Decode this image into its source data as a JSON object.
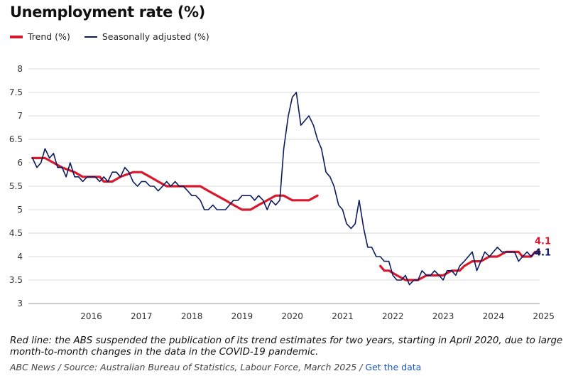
{
  "title": "Unemployment rate (%)",
  "legend": {
    "trend": "Trend (%)",
    "sa": "Seasonally adjusted (%)"
  },
  "colors": {
    "trend": "#d7192d",
    "sa": "#0c1a5e",
    "grid": "#d9d9d9"
  },
  "note": "Red line: the ABS suspended the publication of its trend estimates for two years, starting in April 2020, due to large month-to-month changes in the data in the COVID-19 pandemic.",
  "source": {
    "text": "ABC News / Source: Australian Bureau of Statistics, Labour Force, March 2025 /",
    "link": "Get the data"
  },
  "chart_data": {
    "type": "line",
    "xlim": [
      2015.25,
      2025.42
    ],
    "ylim": [
      3,
      8
    ],
    "yticks": [
      "3",
      "3.5",
      "4",
      "4.5",
      "5",
      "5.5",
      "6",
      "6.5",
      "7",
      "7.5",
      "8"
    ],
    "xticks": [
      "2016",
      "2017",
      "2018",
      "2019",
      "2020",
      "2021",
      "2022",
      "2023",
      "2024",
      "2025"
    ],
    "grid": "horizontal",
    "legend_position": "top-left",
    "end_labels": {
      "trend": "4.1",
      "sa": "4.1"
    },
    "series": [
      {
        "name": "Trend (%)",
        "key": "trend",
        "segments": [
          [
            [
              2015.33,
              6.1
            ],
            [
              2015.58,
              6.1
            ],
            [
              2015.75,
              6.0
            ],
            [
              2015.92,
              5.9
            ],
            [
              2016.17,
              5.8
            ],
            [
              2016.33,
              5.7
            ],
            [
              2016.67,
              5.7
            ],
            [
              2016.75,
              5.6
            ],
            [
              2016.92,
              5.6
            ],
            [
              2017.08,
              5.7
            ],
            [
              2017.33,
              5.8
            ],
            [
              2017.5,
              5.8
            ],
            [
              2017.67,
              5.7
            ],
            [
              2017.83,
              5.6
            ],
            [
              2018.0,
              5.5
            ],
            [
              2018.25,
              5.5
            ],
            [
              2018.5,
              5.5
            ],
            [
              2018.67,
              5.5
            ],
            [
              2018.83,
              5.4
            ],
            [
              2019.0,
              5.3
            ],
            [
              2019.17,
              5.2
            ],
            [
              2019.33,
              5.1
            ],
            [
              2019.5,
              5.0
            ],
            [
              2019.67,
              5.0
            ],
            [
              2019.83,
              5.1
            ],
            [
              2020.0,
              5.2
            ],
            [
              2020.17,
              5.3
            ],
            [
              2020.33,
              5.3
            ],
            [
              2020.5,
              5.2
            ],
            [
              2020.67,
              5.2
            ],
            [
              2020.83,
              5.2
            ],
            [
              2021.0,
              5.3
            ]
          ],
          [
            [
              2022.25,
              3.8
            ],
            [
              2022.33,
              3.7
            ],
            [
              2022.42,
              3.7
            ],
            [
              2022.58,
              3.6
            ],
            [
              2022.75,
              3.5
            ],
            [
              2023.0,
              3.5
            ],
            [
              2023.17,
              3.6
            ],
            [
              2023.5,
              3.6
            ],
            [
              2023.67,
              3.7
            ],
            [
              2023.83,
              3.7
            ],
            [
              2023.92,
              3.8
            ],
            [
              2024.08,
              3.9
            ],
            [
              2024.25,
              3.9
            ],
            [
              2024.42,
              4.0
            ],
            [
              2024.58,
              4.0
            ],
            [
              2024.75,
              4.1
            ],
            [
              2025.0,
              4.1
            ],
            [
              2025.08,
              4.0
            ],
            [
              2025.25,
              4.0
            ],
            [
              2025.33,
              4.1
            ],
            [
              2025.42,
              4.1
            ]
          ]
        ]
      },
      {
        "name": "Seasonally adjusted (%)",
        "key": "sa",
        "segments": [
          [
            [
              2015.33,
              6.1
            ],
            [
              2015.42,
              5.9
            ],
            [
              2015.5,
              6.0
            ],
            [
              2015.58,
              6.3
            ],
            [
              2015.67,
              6.1
            ],
            [
              2015.75,
              6.2
            ],
            [
              2015.83,
              5.9
            ],
            [
              2015.92,
              5.9
            ],
            [
              2016.0,
              5.7
            ],
            [
              2016.08,
              6.0
            ],
            [
              2016.17,
              5.7
            ],
            [
              2016.25,
              5.7
            ],
            [
              2016.33,
              5.6
            ],
            [
              2016.42,
              5.7
            ],
            [
              2016.5,
              5.7
            ],
            [
              2016.58,
              5.7
            ],
            [
              2016.67,
              5.6
            ],
            [
              2016.75,
              5.7
            ],
            [
              2016.83,
              5.6
            ],
            [
              2016.92,
              5.8
            ],
            [
              2017.0,
              5.8
            ],
            [
              2017.08,
              5.7
            ],
            [
              2017.17,
              5.9
            ],
            [
              2017.25,
              5.8
            ],
            [
              2017.33,
              5.6
            ],
            [
              2017.42,
              5.5
            ],
            [
              2017.5,
              5.6
            ],
            [
              2017.58,
              5.6
            ],
            [
              2017.67,
              5.5
            ],
            [
              2017.75,
              5.5
            ],
            [
              2017.83,
              5.4
            ],
            [
              2017.92,
              5.5
            ],
            [
              2018.0,
              5.6
            ],
            [
              2018.08,
              5.5
            ],
            [
              2018.17,
              5.6
            ],
            [
              2018.25,
              5.5
            ],
            [
              2018.33,
              5.5
            ],
            [
              2018.42,
              5.4
            ],
            [
              2018.5,
              5.3
            ],
            [
              2018.58,
              5.3
            ],
            [
              2018.67,
              5.2
            ],
            [
              2018.75,
              5.0
            ],
            [
              2018.83,
              5.0
            ],
            [
              2018.92,
              5.1
            ],
            [
              2019.0,
              5.0
            ],
            [
              2019.08,
              5.0
            ],
            [
              2019.17,
              5.0
            ],
            [
              2019.25,
              5.1
            ],
            [
              2019.33,
              5.2
            ],
            [
              2019.42,
              5.2
            ],
            [
              2019.5,
              5.3
            ],
            [
              2019.58,
              5.3
            ],
            [
              2019.67,
              5.3
            ],
            [
              2019.75,
              5.2
            ],
            [
              2019.83,
              5.3
            ],
            [
              2019.92,
              5.2
            ],
            [
              2020.0,
              5.0
            ],
            [
              2020.08,
              5.2
            ],
            [
              2020.17,
              5.1
            ],
            [
              2020.25,
              5.2
            ],
            [
              2020.33,
              6.3
            ],
            [
              2020.42,
              7.0
            ],
            [
              2020.5,
              7.4
            ],
            [
              2020.58,
              7.5
            ],
            [
              2020.67,
              6.8
            ],
            [
              2020.75,
              6.9
            ],
            [
              2020.83,
              7.0
            ],
            [
              2020.92,
              6.8
            ],
            [
              2021.0,
              6.5
            ],
            [
              2021.08,
              6.3
            ],
            [
              2021.17,
              5.8
            ],
            [
              2021.25,
              5.7
            ],
            [
              2021.33,
              5.5
            ],
            [
              2021.42,
              5.1
            ],
            [
              2021.5,
              5.0
            ],
            [
              2021.58,
              4.7
            ],
            [
              2021.67,
              4.6
            ],
            [
              2021.75,
              4.7
            ],
            [
              2021.83,
              5.2
            ],
            [
              2021.92,
              4.6
            ],
            [
              2022.0,
              4.2
            ],
            [
              2022.08,
              4.2
            ],
            [
              2022.17,
              4.0
            ],
            [
              2022.25,
              4.0
            ],
            [
              2022.33,
              3.9
            ],
            [
              2022.42,
              3.9
            ],
            [
              2022.5,
              3.6
            ],
            [
              2022.58,
              3.5
            ],
            [
              2022.67,
              3.5
            ],
            [
              2022.75,
              3.6
            ],
            [
              2022.83,
              3.4
            ],
            [
              2022.92,
              3.5
            ],
            [
              2023.0,
              3.5
            ],
            [
              2023.08,
              3.7
            ],
            [
              2023.17,
              3.6
            ],
            [
              2023.25,
              3.6
            ],
            [
              2023.33,
              3.7
            ],
            [
              2023.42,
              3.6
            ],
            [
              2023.5,
              3.5
            ],
            [
              2023.58,
              3.7
            ],
            [
              2023.67,
              3.7
            ],
            [
              2023.75,
              3.6
            ],
            [
              2023.83,
              3.8
            ],
            [
              2023.92,
              3.9
            ],
            [
              2024.0,
              4.0
            ],
            [
              2024.08,
              4.1
            ],
            [
              2024.17,
              3.7
            ],
            [
              2024.25,
              3.9
            ],
            [
              2024.33,
              4.1
            ],
            [
              2024.42,
              4.0
            ],
            [
              2024.5,
              4.1
            ],
            [
              2024.58,
              4.2
            ],
            [
              2024.67,
              4.1
            ],
            [
              2024.75,
              4.1
            ],
            [
              2024.83,
              4.1
            ],
            [
              2024.92,
              4.1
            ],
            [
              2025.0,
              3.9
            ],
            [
              2025.08,
              4.0
            ],
            [
              2025.17,
              4.1
            ],
            [
              2025.25,
              4.0
            ],
            [
              2025.33,
              4.1
            ],
            [
              2025.42,
              4.1
            ]
          ]
        ]
      }
    ]
  }
}
